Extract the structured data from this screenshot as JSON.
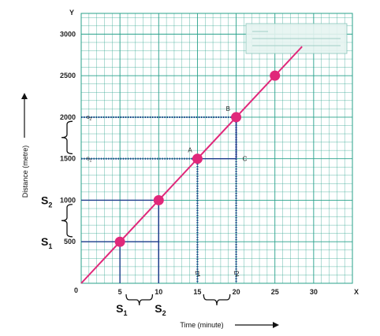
{
  "chart_data": {
    "type": "line",
    "x_axis_letter": "X",
    "y_axis_letter": "Y",
    "origin_label": "0",
    "xlabel": "Time (minute)",
    "ylabel": "Distance (metre)",
    "xlim": [
      0,
      35
    ],
    "ylim": [
      0,
      3250
    ],
    "x_ticks": [
      5,
      10,
      15,
      20,
      25,
      30
    ],
    "y_ticks": [
      500,
      1000,
      1500,
      2000,
      2500,
      3000
    ],
    "line_color": "#e0287a",
    "grid_color": "#27a08a",
    "guide_color": "#1d3c8c",
    "series": [
      {
        "x": [
          0,
          28.5
        ],
        "y": [
          0,
          2850
        ]
      }
    ],
    "points": [
      {
        "x": 5,
        "y": 500
      },
      {
        "x": 10,
        "y": 1000
      },
      {
        "x": 15,
        "y": 1500
      },
      {
        "x": 20,
        "y": 2000
      },
      {
        "x": 25,
        "y": 2500
      }
    ],
    "annotations": {
      "A": {
        "label": "A",
        "x": 15,
        "y": 1500
      },
      "B": {
        "label": "B",
        "x": 20,
        "y": 2000
      },
      "C": {
        "label": "C",
        "x": 20,
        "y": 1500
      },
      "t1": {
        "label": "t",
        "sub": "1",
        "x": 15
      },
      "t2": {
        "label": "t",
        "sub": "2",
        "x": 20
      },
      "s1": {
        "label": "s",
        "sub": "1",
        "y": 1500
      },
      "s2": {
        "label": "s",
        "sub": "2",
        "y": 2000
      },
      "S1_y": {
        "label": "S",
        "sub": "1",
        "y": 500
      },
      "S2_y": {
        "label": "S",
        "sub": "2",
        "y": 1000
      },
      "S1_x": {
        "label": "S",
        "sub": "1",
        "x": 5
      },
      "S2_x": {
        "label": "S",
        "sub": "2",
        "x": 10
      }
    }
  }
}
